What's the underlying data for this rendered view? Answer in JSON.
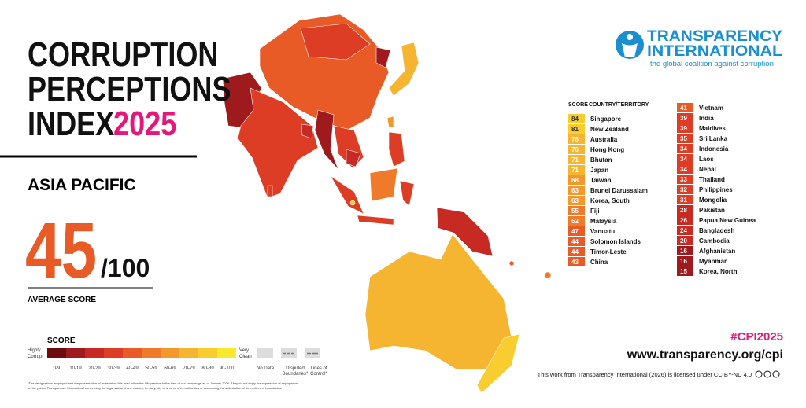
{
  "header": {
    "title_lines": [
      "CORRUPTION",
      "PERCEPTIONS",
      "INDEX"
    ],
    "year": "2025",
    "region": "ASIA PACIFIC"
  },
  "average": {
    "score": 45,
    "out_of": "/100",
    "label": "AVERAGE SCORE"
  },
  "legend": {
    "title": "SCORE",
    "low_label": [
      "Highly",
      "Corrupt"
    ],
    "high_label": [
      "Very",
      "Clean"
    ],
    "bins": [
      {
        "label": "0-9",
        "color": "#6e0b0f"
      },
      {
        "label": "10-19",
        "color": "#9e1a1c"
      },
      {
        "label": "20-29",
        "color": "#c62a22"
      },
      {
        "label": "30-39",
        "color": "#dc3d24"
      },
      {
        "label": "40-49",
        "color": "#e85a26"
      },
      {
        "label": "50-59",
        "color": "#ef7a29"
      },
      {
        "label": "60-69",
        "color": "#f3982c"
      },
      {
        "label": "70-79",
        "color": "#f6b530"
      },
      {
        "label": "80-89",
        "color": "#f8cd2f"
      },
      {
        "label": "90-100",
        "color": "#fbe92d"
      }
    ],
    "other": [
      {
        "label": [
          "No Data"
        ]
      },
      {
        "label": [
          "Disputed",
          "Boundaries*"
        ]
      },
      {
        "label": [
          "Lines of",
          "Control*"
        ]
      }
    ]
  },
  "table": {
    "headers": [
      "SCORE",
      "COUNTRY/TERRITORY"
    ],
    "rows": [
      [
        84,
        "Singapore"
      ],
      [
        81,
        "New Zealand"
      ],
      [
        76,
        "Australia"
      ],
      [
        76,
        "Hong Kong"
      ],
      [
        71,
        "Bhutan"
      ],
      [
        71,
        "Japan"
      ],
      [
        68,
        "Taiwan"
      ],
      [
        63,
        "Brunei Darussalam"
      ],
      [
        63,
        "Korea, South"
      ],
      [
        55,
        "Fiji"
      ],
      [
        52,
        "Malaysia"
      ],
      [
        47,
        "Vanuatu"
      ],
      [
        44,
        "Solomon Islands"
      ],
      [
        44,
        "Timor-Leste"
      ],
      [
        43,
        "China"
      ],
      [
        41,
        "Vietnam"
      ],
      [
        39,
        "India"
      ],
      [
        39,
        "Maldives"
      ],
      [
        35,
        "Sri Lanka"
      ],
      [
        34,
        "Indonesia"
      ],
      [
        34,
        "Laos"
      ],
      [
        34,
        "Nepal"
      ],
      [
        33,
        "Thailand"
      ],
      [
        32,
        "Philippines"
      ],
      [
        31,
        "Mongolia"
      ],
      [
        28,
        "Pakistan"
      ],
      [
        26,
        "Papua New Guinea"
      ],
      [
        24,
        "Bangladesh"
      ],
      [
        20,
        "Cambodia"
      ],
      [
        16,
        "Afghanistan"
      ],
      [
        16,
        "Myanmar"
      ],
      [
        15,
        "Korea, North"
      ]
    ]
  },
  "logo": {
    "name_lines": [
      "TRANSPARENCY",
      "INTERNATIONAL"
    ],
    "tagline": "the global coalition against corruption"
  },
  "footer": {
    "hashtag": "#CPI2025",
    "url": "www.transparency.org/cpi",
    "license": "This work from Transparency International (2026) is licensed under CC BY-ND 4.0",
    "disclaimer_lines": [
      "*The designations employed and the presentation of material on this map follow the UN practice to the best of our knowledge as of January 2026. They do not imply the expression of any opinion",
      "on the part of Transparency International concerning the legal status of any country, territory, city or area or of its authorities or concerning the delimitation of its frontiers or boundaries."
    ]
  }
}
